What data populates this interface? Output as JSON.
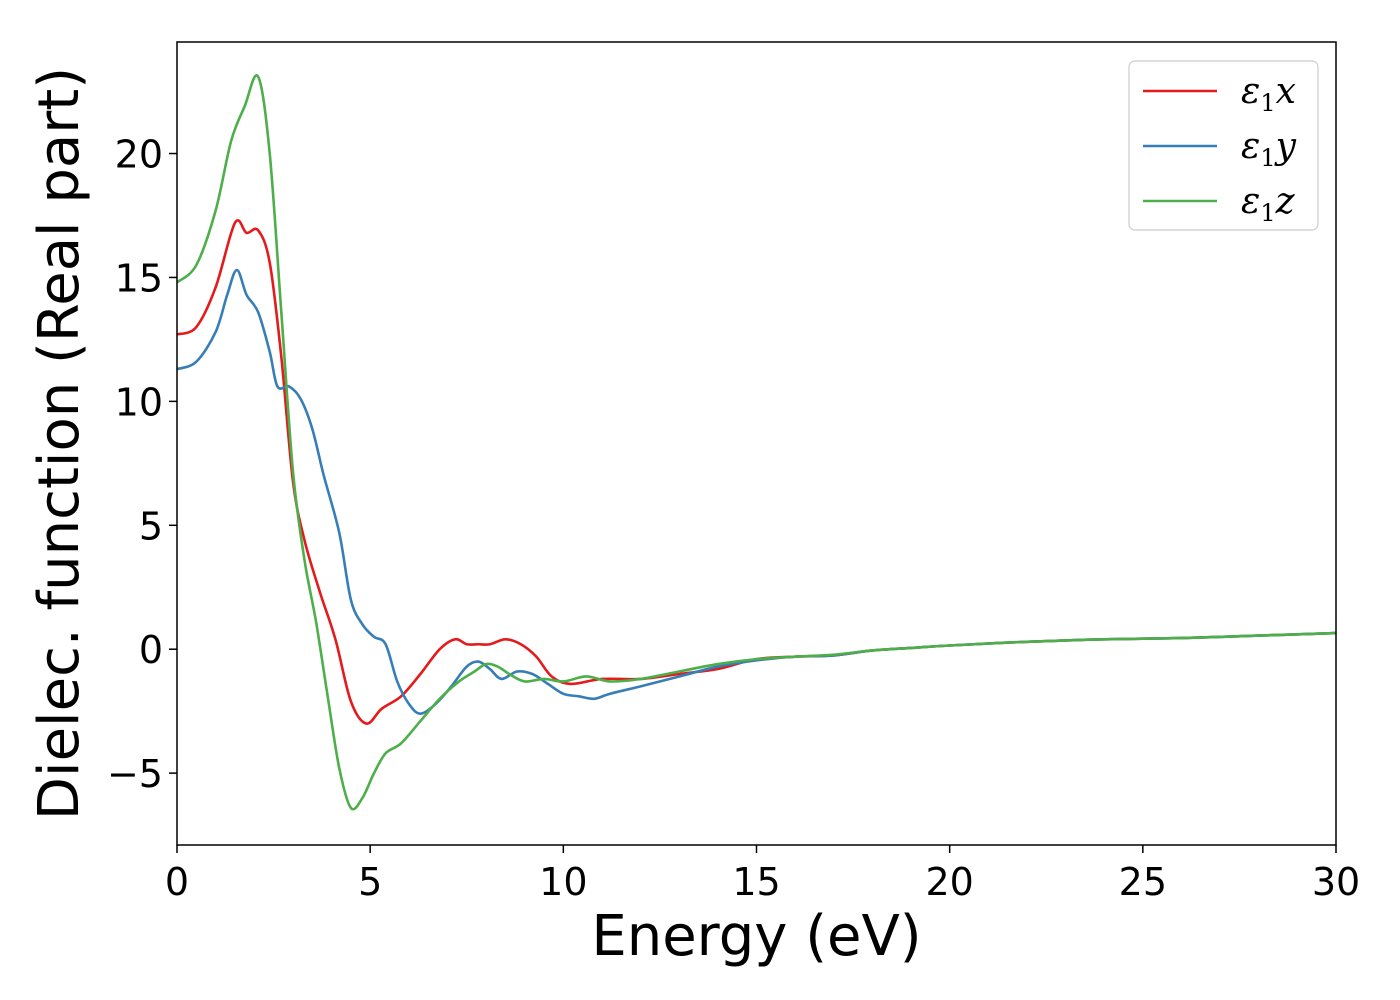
{
  "chart_data": {
    "type": "line",
    "xlabel": "Energy (eV)",
    "ylabel": "Dielec. function (Real part)",
    "xlim": [
      0,
      30
    ],
    "ylim": [
      -7.9,
      24.5
    ],
    "xticks": [
      0,
      5,
      10,
      15,
      20,
      25,
      30
    ],
    "xtick_labels": [
      "0",
      "5",
      "10",
      "15",
      "20",
      "25",
      "30"
    ],
    "yticks": [
      -5,
      0,
      5,
      10,
      15,
      20
    ],
    "ytick_labels": [
      "−5",
      "0",
      "5",
      "10",
      "15",
      "20"
    ],
    "grid": false,
    "legend_position": "top-right",
    "series": [
      {
        "name": "ε1x",
        "label_main": "ε",
        "label_sub": "1",
        "label_tail": "x",
        "color": "#e41a1c",
        "points": [
          [
            0,
            12.7
          ],
          [
            0.5,
            13.0
          ],
          [
            1.0,
            14.6
          ],
          [
            1.5,
            17.2
          ],
          [
            1.8,
            16.8
          ],
          [
            2.1,
            16.9
          ],
          [
            2.4,
            15.6
          ],
          [
            2.7,
            11.8
          ],
          [
            3.0,
            6.8
          ],
          [
            3.3,
            4.4
          ],
          [
            3.7,
            2.3
          ],
          [
            4.1,
            0.4
          ],
          [
            4.5,
            -2.1
          ],
          [
            4.9,
            -3.0
          ],
          [
            5.3,
            -2.4
          ],
          [
            5.8,
            -1.9
          ],
          [
            6.3,
            -1.0
          ],
          [
            6.8,
            0.0
          ],
          [
            7.2,
            0.4
          ],
          [
            7.5,
            0.2
          ],
          [
            7.8,
            0.2
          ],
          [
            8.1,
            0.2
          ],
          [
            8.5,
            0.4
          ],
          [
            8.9,
            0.2
          ],
          [
            9.3,
            -0.3
          ],
          [
            9.7,
            -1.1
          ],
          [
            10.2,
            -1.4
          ],
          [
            11.0,
            -1.2
          ],
          [
            12.0,
            -1.2
          ],
          [
            13.0,
            -1.0
          ],
          [
            14.0,
            -0.8
          ],
          [
            15.0,
            -0.4
          ],
          [
            16.0,
            -0.3
          ],
          [
            17.0,
            -0.25
          ],
          [
            18.0,
            -0.05
          ],
          [
            19.0,
            0.05
          ],
          [
            20.0,
            0.15
          ],
          [
            22.0,
            0.3
          ],
          [
            24.0,
            0.4
          ],
          [
            26.0,
            0.45
          ],
          [
            28.0,
            0.55
          ],
          [
            30.0,
            0.65
          ]
        ]
      },
      {
        "name": "ε1y",
        "label_main": "ε",
        "label_sub": "1",
        "label_tail": "y",
        "color": "#377eb8",
        "points": [
          [
            0,
            11.3
          ],
          [
            0.5,
            11.6
          ],
          [
            1.0,
            12.8
          ],
          [
            1.3,
            14.3
          ],
          [
            1.55,
            15.3
          ],
          [
            1.8,
            14.3
          ],
          [
            2.1,
            13.6
          ],
          [
            2.4,
            12.0
          ],
          [
            2.6,
            10.6
          ],
          [
            2.9,
            10.6
          ],
          [
            3.2,
            10.1
          ],
          [
            3.5,
            8.9
          ],
          [
            3.8,
            7.0
          ],
          [
            4.2,
            4.7
          ],
          [
            4.5,
            2.0
          ],
          [
            4.8,
            1.0
          ],
          [
            5.1,
            0.5
          ],
          [
            5.4,
            0.2
          ],
          [
            5.7,
            -1.3
          ],
          [
            6.0,
            -2.2
          ],
          [
            6.3,
            -2.6
          ],
          [
            6.7,
            -2.2
          ],
          [
            7.1,
            -1.5
          ],
          [
            7.5,
            -0.7
          ],
          [
            7.8,
            -0.5
          ],
          [
            8.1,
            -0.8
          ],
          [
            8.4,
            -1.2
          ],
          [
            8.8,
            -0.9
          ],
          [
            9.2,
            -1.0
          ],
          [
            9.6,
            -1.4
          ],
          [
            10.0,
            -1.8
          ],
          [
            10.4,
            -1.9
          ],
          [
            10.8,
            -2.0
          ],
          [
            11.2,
            -1.8
          ],
          [
            12.0,
            -1.5
          ],
          [
            13.0,
            -1.1
          ],
          [
            14.0,
            -0.7
          ],
          [
            15.0,
            -0.45
          ],
          [
            16.0,
            -0.3
          ],
          [
            17.0,
            -0.25
          ],
          [
            18.0,
            -0.05
          ],
          [
            19.0,
            0.05
          ],
          [
            20.0,
            0.15
          ],
          [
            22.0,
            0.3
          ],
          [
            24.0,
            0.4
          ],
          [
            26.0,
            0.45
          ],
          [
            28.0,
            0.55
          ],
          [
            30.0,
            0.65
          ]
        ]
      },
      {
        "name": "ε1z",
        "label_main": "ε",
        "label_sub": "1",
        "label_tail": "z",
        "color": "#4daf4a",
        "points": [
          [
            0,
            14.8
          ],
          [
            0.5,
            15.5
          ],
          [
            1.0,
            17.7
          ],
          [
            1.4,
            20.5
          ],
          [
            1.75,
            21.9
          ],
          [
            2.1,
            23.1
          ],
          [
            2.4,
            20.0
          ],
          [
            2.7,
            13.6
          ],
          [
            3.0,
            7.2
          ],
          [
            3.3,
            3.6
          ],
          [
            3.6,
            1.1
          ],
          [
            3.9,
            -1.9
          ],
          [
            4.2,
            -4.8
          ],
          [
            4.5,
            -6.4
          ],
          [
            4.8,
            -6.0
          ],
          [
            5.1,
            -5.0
          ],
          [
            5.4,
            -4.2
          ],
          [
            5.8,
            -3.8
          ],
          [
            6.3,
            -2.9
          ],
          [
            6.8,
            -2.0
          ],
          [
            7.3,
            -1.3
          ],
          [
            7.7,
            -0.9
          ],
          [
            8.0,
            -0.6
          ],
          [
            8.3,
            -0.7
          ],
          [
            8.6,
            -1.0
          ],
          [
            9.0,
            -1.3
          ],
          [
            9.5,
            -1.2
          ],
          [
            10.0,
            -1.3
          ],
          [
            10.6,
            -1.1
          ],
          [
            11.2,
            -1.3
          ],
          [
            12.0,
            -1.2
          ],
          [
            13.0,
            -0.9
          ],
          [
            14.0,
            -0.6
          ],
          [
            15.0,
            -0.4
          ],
          [
            16.0,
            -0.3
          ],
          [
            17.0,
            -0.22
          ],
          [
            18.0,
            -0.05
          ],
          [
            19.0,
            0.05
          ],
          [
            20.0,
            0.15
          ],
          [
            22.0,
            0.3
          ],
          [
            24.0,
            0.4
          ],
          [
            26.0,
            0.45
          ],
          [
            28.0,
            0.55
          ],
          [
            30.0,
            0.65
          ]
        ]
      }
    ]
  }
}
